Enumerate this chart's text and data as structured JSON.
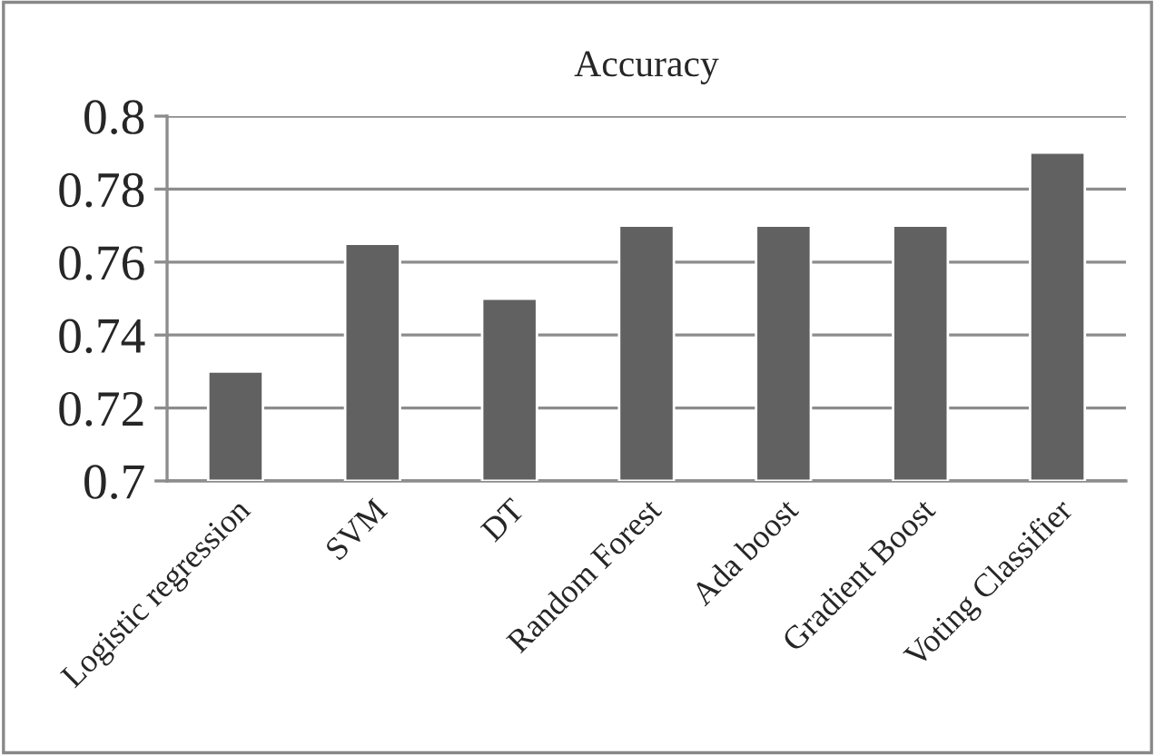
{
  "chart_data": {
    "type": "bar",
    "title": "Accuracy",
    "categories": [
      "Logistic regression",
      "SVM",
      "DT",
      "Random Forest",
      "Ada boost",
      "Gradient Boost",
      "Voting Classifier"
    ],
    "values": [
      0.73,
      0.765,
      0.75,
      0.77,
      0.77,
      0.77,
      0.79
    ],
    "color": "#616161",
    "ylim": [
      0.7,
      0.8
    ],
    "yticks": [
      0.7,
      0.72,
      0.74,
      0.76,
      0.78,
      0.8
    ],
    "grid": "y",
    "legend": false
  }
}
